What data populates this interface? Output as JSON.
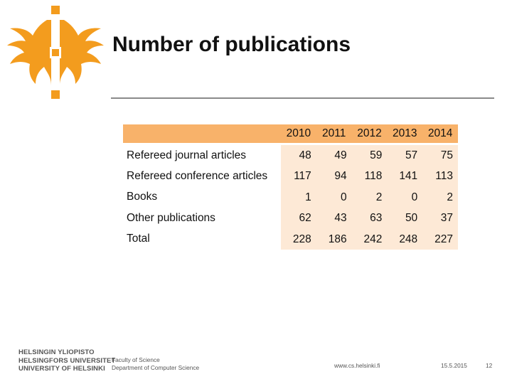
{
  "slide": {
    "title": "Number of publications"
  },
  "table": {
    "years": [
      "2010",
      "2011",
      "2012",
      "2013",
      "2014"
    ],
    "rows": [
      {
        "label": "Refereed journal articles",
        "values": [
          "48",
          "49",
          "59",
          "57",
          "75"
        ]
      },
      {
        "label": "Refereed conference articles",
        "values": [
          "117",
          "94",
          "118",
          "141",
          "113"
        ]
      },
      {
        "label": "Books",
        "values": [
          "1",
          "0",
          "2",
          "0",
          "2"
        ]
      },
      {
        "label": "Other publications",
        "values": [
          "62",
          "43",
          "63",
          "50",
          "37"
        ]
      },
      {
        "label": "Total",
        "values": [
          "228",
          "186",
          "242",
          "248",
          "227"
        ]
      }
    ]
  },
  "footer": {
    "university_lines": [
      "HELSINGIN YLIOPISTO",
      "HELSINGFORS UNIVERSITET",
      "UNIVERSITY OF HELSINKI"
    ],
    "faculty": "Faculty of Science",
    "department": "Department of Computer Science",
    "website": "www.cs.helsinki.fi",
    "date": "15.5.2015",
    "page_number": "12"
  },
  "colors": {
    "brand": "#f39c1e",
    "header_fill": "#f8b26a",
    "cell_fill": "#fde9d6"
  },
  "icons": {
    "logo": "university-flame-logo"
  }
}
